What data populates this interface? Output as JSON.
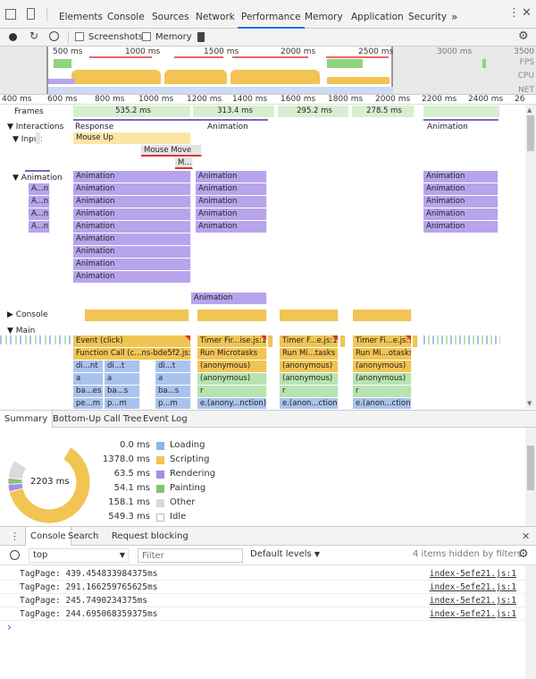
{
  "tabs": [
    "Elements",
    "Console",
    "Sources",
    "Network",
    "Performance",
    "Memory",
    "Application",
    "Security"
  ],
  "tabs_more": "»",
  "active_tab": "Performance",
  "toolbar": {
    "screenshots_label": "Screenshots",
    "memory_label": "Memory"
  },
  "overview": {
    "ticks": [
      "500 ms",
      "1000 ms",
      "1500 ms",
      "2000 ms",
      "2500 ms",
      "3000 ms",
      "3500"
    ],
    "labels": [
      "FPS",
      "CPU",
      "NET"
    ]
  },
  "ruler_ticks": [
    "400 ms",
    "600 ms",
    "800 ms",
    "1000 ms",
    "1200 ms",
    "1400 ms",
    "1600 ms",
    "1800 ms",
    "2000 ms",
    "2200 ms",
    "2400 ms",
    "26"
  ],
  "frames": {
    "label": "Frames",
    "values": [
      "535.2 ms",
      "313.4 ms",
      "295.2 ms",
      "278.5 ms"
    ]
  },
  "interactions": {
    "label": "Interactions",
    "response": "Response",
    "animation1": "Animation",
    "animation2": "Animation"
  },
  "input": {
    "label": "Input",
    "mouse_up": "Mouse Up",
    "mouse_move": "Mouse Move",
    "m": "M..."
  },
  "animation_track": {
    "label": "Animation",
    "short": [
      "A...n",
      "A...n",
      "A...n",
      "A...n"
    ],
    "block": "Animation"
  },
  "console_track": "Console",
  "main": {
    "label": "Main",
    "col1": [
      "Event (click)",
      "Function Call (c...ns-bde5f2.js:1)",
      "di...nt",
      "a",
      "ba...es",
      "pe...m"
    ],
    "col1b": [
      "di...t",
      "a",
      "ba...s",
      "p...m"
    ],
    "col1c": [
      "di...t",
      "a",
      "ba...s",
      "p...m"
    ],
    "col2": [
      "Timer Fir...ise.js:1)",
      "Run Microtasks",
      "(anonymous)",
      "(anonymous)",
      "r",
      "e.(anony...nction)"
    ],
    "col3": [
      "Timer F...e.js:1)",
      "Run Mi...tasks",
      "(anonymous)",
      "(anonymous)",
      "r",
      "e.(anon...ction)"
    ],
    "col4": [
      "Timer Fi...e.js:1)",
      "Run Mi...otasks",
      "(anonymous)",
      "(anonymous)",
      "r",
      "e.(anon...ction)"
    ]
  },
  "bottom_tabs": [
    "Summary",
    "Bottom-Up",
    "Call Tree",
    "Event Log"
  ],
  "summary": {
    "total": "2203 ms",
    "rows": [
      {
        "value": "0.0 ms",
        "name": "Loading",
        "color": "#8fb4ec"
      },
      {
        "value": "1378.0 ms",
        "name": "Scripting",
        "color": "#f1c453"
      },
      {
        "value": "63.5 ms",
        "name": "Rendering",
        "color": "#a98ae8"
      },
      {
        "value": "54.1 ms",
        "name": "Painting",
        "color": "#83c474"
      },
      {
        "value": "158.1 ms",
        "name": "Other",
        "color": "#dadada"
      },
      {
        "value": "549.3 ms",
        "name": "Idle",
        "color": "#ffffff"
      }
    ]
  },
  "drawer": {
    "tabs": [
      "Console",
      "Search",
      "Request blocking"
    ]
  },
  "console_toolbar": {
    "context": "top",
    "filter_placeholder": "Filter",
    "levels": "Default levels",
    "hidden": "4 items hidden by filters"
  },
  "logs": [
    {
      "msg": "TagPage: 439.454833984375ms",
      "src": "index-5efe21.js:1"
    },
    {
      "msg": "TagPage: 291.166259765625ms",
      "src": "index-5efe21.js:1"
    },
    {
      "msg": "TagPage: 245.7490234375ms",
      "src": "index-5efe21.js:1"
    },
    {
      "msg": "TagPage: 244.695068359375ms",
      "src": "index-5efe21.js:1"
    }
  ],
  "prompt": "›"
}
